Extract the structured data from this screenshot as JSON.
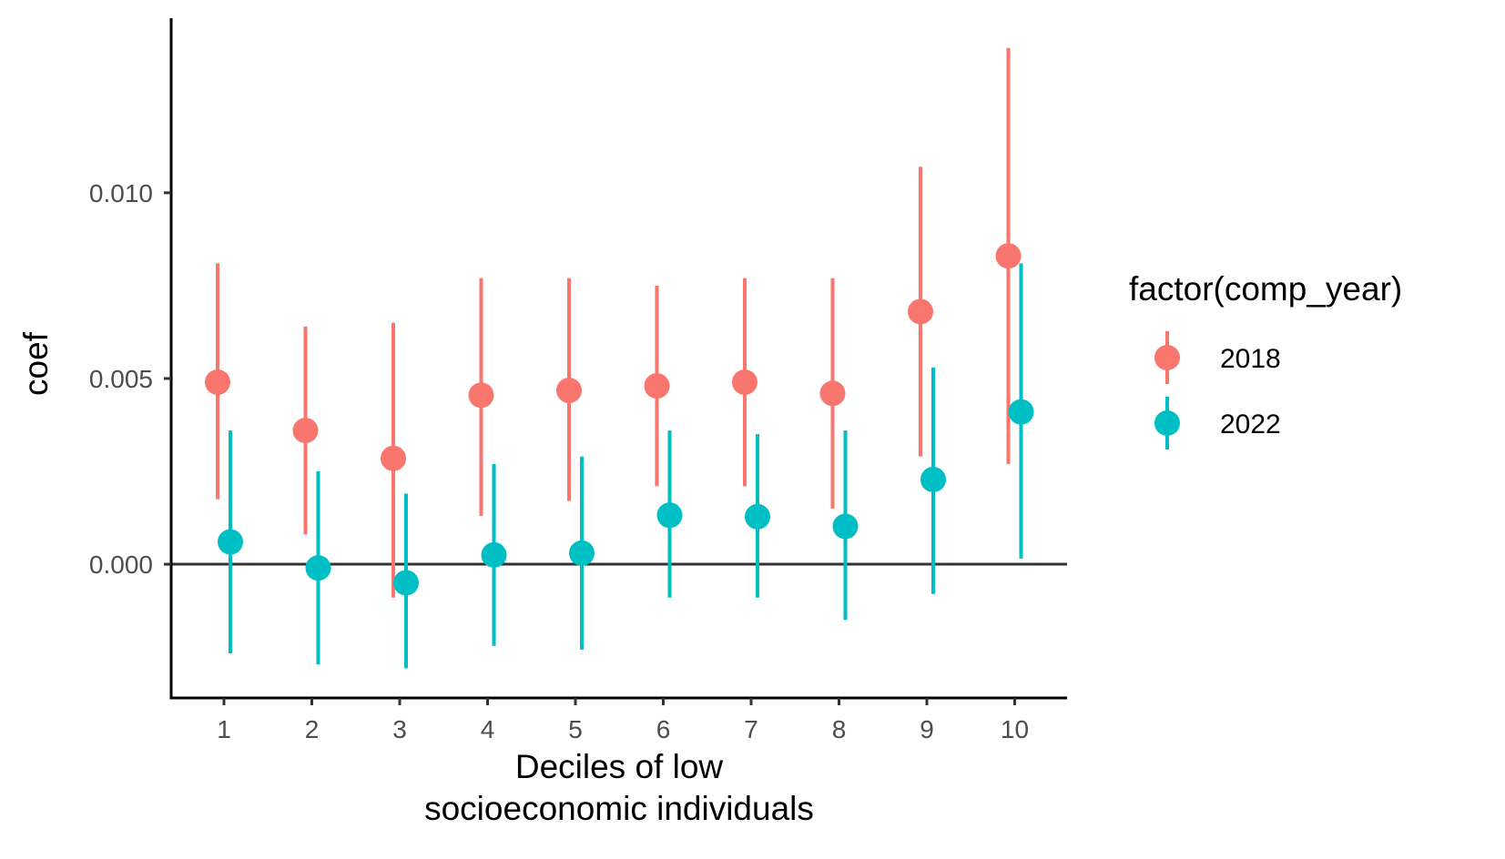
{
  "chart_data": {
    "type": "scatter",
    "subtype": "pointrange",
    "title": "",
    "xlabel": [
      "Deciles of low",
      "socioeconomic individuals"
    ],
    "ylabel": "coef",
    "categories": [
      "1",
      "2",
      "3",
      "4",
      "5",
      "6",
      "7",
      "8",
      "9",
      "10"
    ],
    "yticks": [
      "0.000",
      "0.005",
      "0.010"
    ],
    "ytick_values": [
      0.0,
      0.005,
      0.01
    ],
    "ylim": [
      -0.0036,
      0.0147
    ],
    "reference_line": 0,
    "grid": false,
    "legend": {
      "title": "factor(comp_year)",
      "position": "right"
    },
    "series": [
      {
        "name": "2018",
        "color": "#F8766D",
        "values": [
          0.0049,
          0.0036,
          0.00285,
          0.00455,
          0.00468,
          0.0048,
          0.0049,
          0.0046,
          0.0068,
          0.0083
        ],
        "lower": [
          0.00175,
          0.0008,
          -0.0009,
          0.0013,
          0.0017,
          0.0021,
          0.0021,
          0.0015,
          0.0029,
          0.0027
        ],
        "upper": [
          0.0081,
          0.0064,
          0.0065,
          0.0077,
          0.0077,
          0.0075,
          0.0077,
          0.0077,
          0.0107,
          0.0139
        ]
      },
      {
        "name": "2022",
        "color": "#00BFC4",
        "values": [
          0.0006,
          -0.0001,
          -0.0005,
          0.00025,
          0.0003,
          0.00132,
          0.00128,
          0.00102,
          0.00228,
          0.0041
        ],
        "lower": [
          -0.0024,
          -0.0027,
          -0.0028,
          -0.0022,
          -0.0023,
          -0.0009,
          -0.0009,
          -0.0015,
          -0.0008,
          0.00015
        ],
        "upper": [
          0.0036,
          0.0025,
          0.0019,
          0.0027,
          0.0029,
          0.0036,
          0.0035,
          0.0036,
          0.0053,
          0.0081
        ]
      }
    ]
  }
}
